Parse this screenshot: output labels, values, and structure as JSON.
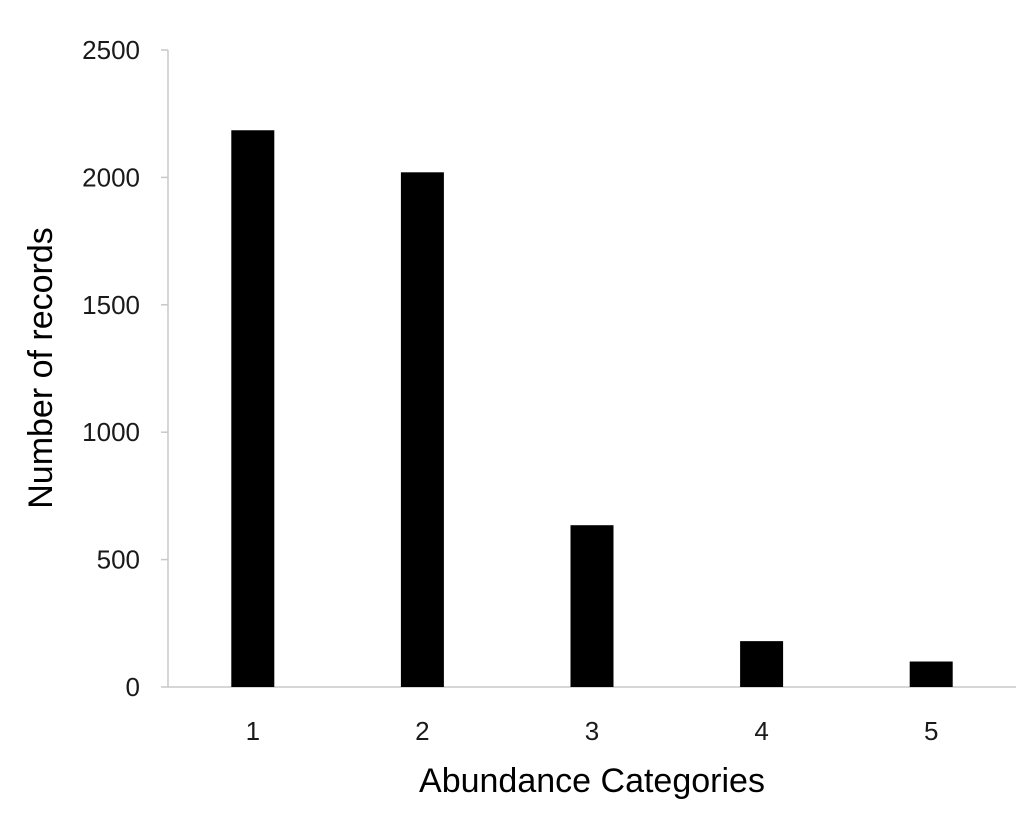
{
  "chart_data": {
    "type": "bar",
    "categories": [
      "1",
      "2",
      "3",
      "4",
      "5"
    ],
    "values": [
      2185,
      2020,
      635,
      180,
      100
    ],
    "xlabel": "Abundance Categories",
    "ylabel": "Number of records",
    "ylim": [
      0,
      2500
    ],
    "yticks": [
      "0",
      "500",
      "1000",
      "1500",
      "2000",
      "2500"
    ],
    "grid": false,
    "legend": "none",
    "bar_color": "#000000"
  }
}
